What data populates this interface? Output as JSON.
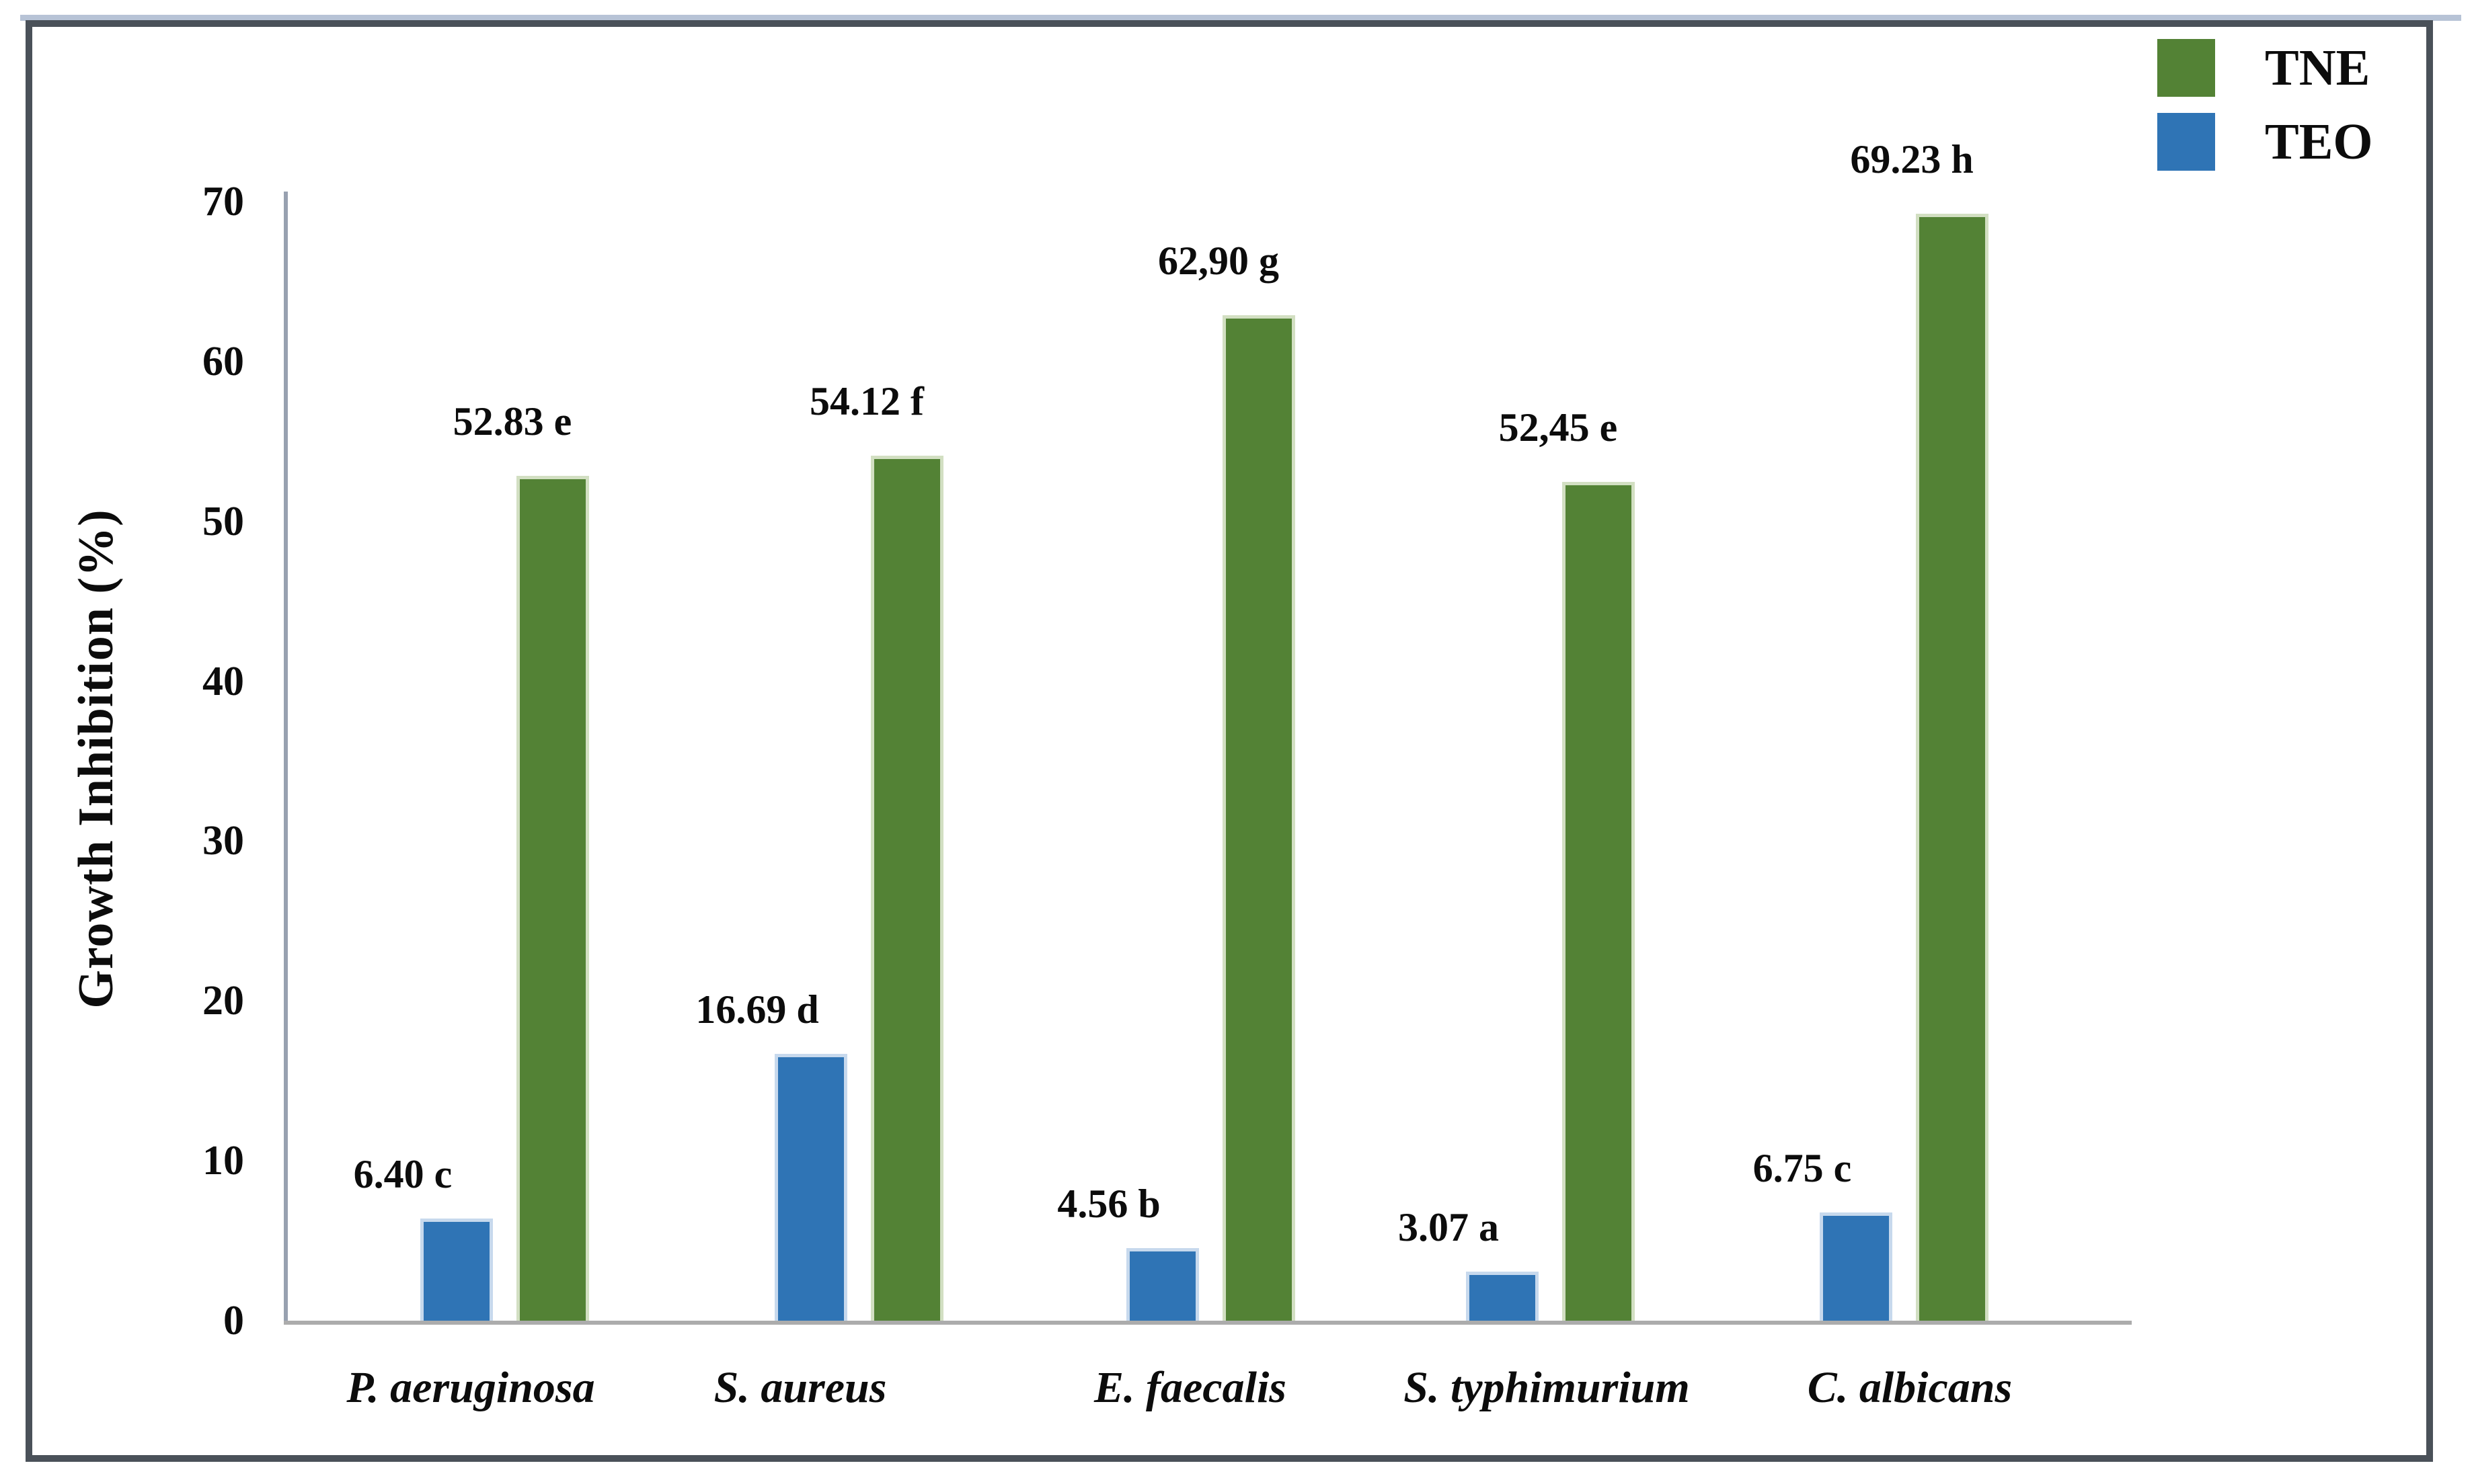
{
  "figure": {
    "background": "#ffffff",
    "border_color": "#4a5159",
    "accent_line_color": "#b7c3d6"
  },
  "legend": {
    "position": "top-right",
    "items": [
      {
        "label": "TNE",
        "color": "#538235"
      },
      {
        "label": "TEO",
        "color": "#2F74B5"
      }
    ]
  },
  "chart_data": {
    "type": "bar",
    "title": "",
    "xlabel": "",
    "ylabel": "Growth Inhibition (%)",
    "ylim": [
      0,
      70
    ],
    "yticks": [
      "0",
      "10",
      "20",
      "30",
      "40",
      "50",
      "60",
      "70"
    ],
    "grid": false,
    "legend_position": "top-right",
    "categories": [
      "P. aeruginosa",
      "S. aureus",
      "E. faecalis",
      "S. typhimurium",
      "C. albicans"
    ],
    "series": [
      {
        "name": "TNE",
        "color": "#538235",
        "values": [
          52.83,
          54.12,
          62.9,
          52.45,
          69.23
        ],
        "data_labels": [
          "52.83 e",
          "54.12 f",
          "62,90 g",
          "52,45 e",
          "69.23 h"
        ]
      },
      {
        "name": "TEO",
        "color": "#2F74B5",
        "values": [
          6.4,
          16.69,
          4.56,
          3.07,
          6.75
        ],
        "data_labels": [
          "6.40 c",
          "16.69 d",
          "4.56 b",
          "3.07 a",
          "6.75 c"
        ]
      }
    ],
    "axis_color": "#98a1b0",
    "baseline_color": "#acacac"
  }
}
